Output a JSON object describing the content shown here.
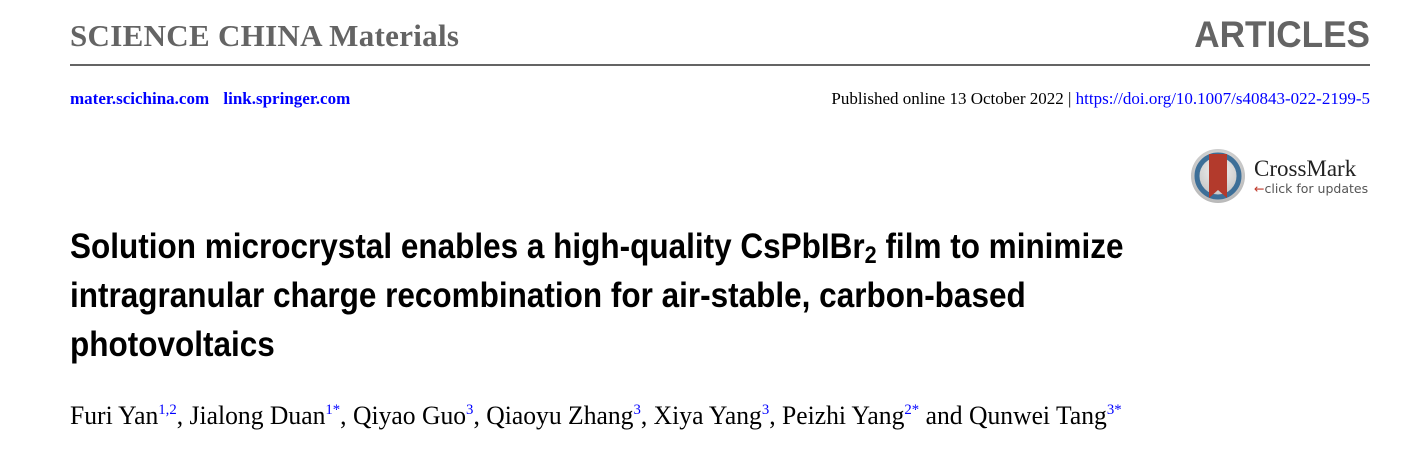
{
  "header": {
    "journal": "SCIENCE CHINA Materials",
    "section": "ARTICLES",
    "links": [
      "mater.scichina.com",
      "link.springer.com"
    ],
    "published": "Published online 13 October 2022 | ",
    "doi": "https://doi.org/10.1007/s40843-022-2199-5",
    "link_color": "#0000ff",
    "header_color": "#646464"
  },
  "crossmark": {
    "title": "CrossMark",
    "arrow": "←",
    "subtitle": "click for updates"
  },
  "title": {
    "line1_a": "Solution microcrystal enables a high-quality CsPbIBr",
    "line1_sub": "2",
    "line1_b": " film to minimize",
    "line2": "intragranular charge recombination for air-stable, carbon-based",
    "line3": "photovoltaics"
  },
  "authors": [
    {
      "name": "Furi Yan",
      "aff": "1,2",
      "sep": ", "
    },
    {
      "name": "Jialong Duan",
      "aff": "1*",
      "sep": ", "
    },
    {
      "name": "Qiyao Guo",
      "aff": "3",
      "sep": ", "
    },
    {
      "name": "Qiaoyu Zhang",
      "aff": "3",
      "sep": ", "
    },
    {
      "name": "Xiya Yang",
      "aff": "3",
      "sep": ", "
    },
    {
      "name": "Peizhi Yang",
      "aff": "2*",
      "sep": " and "
    },
    {
      "name": "Qunwei Tang",
      "aff": "3*",
      "sep": ""
    }
  ]
}
